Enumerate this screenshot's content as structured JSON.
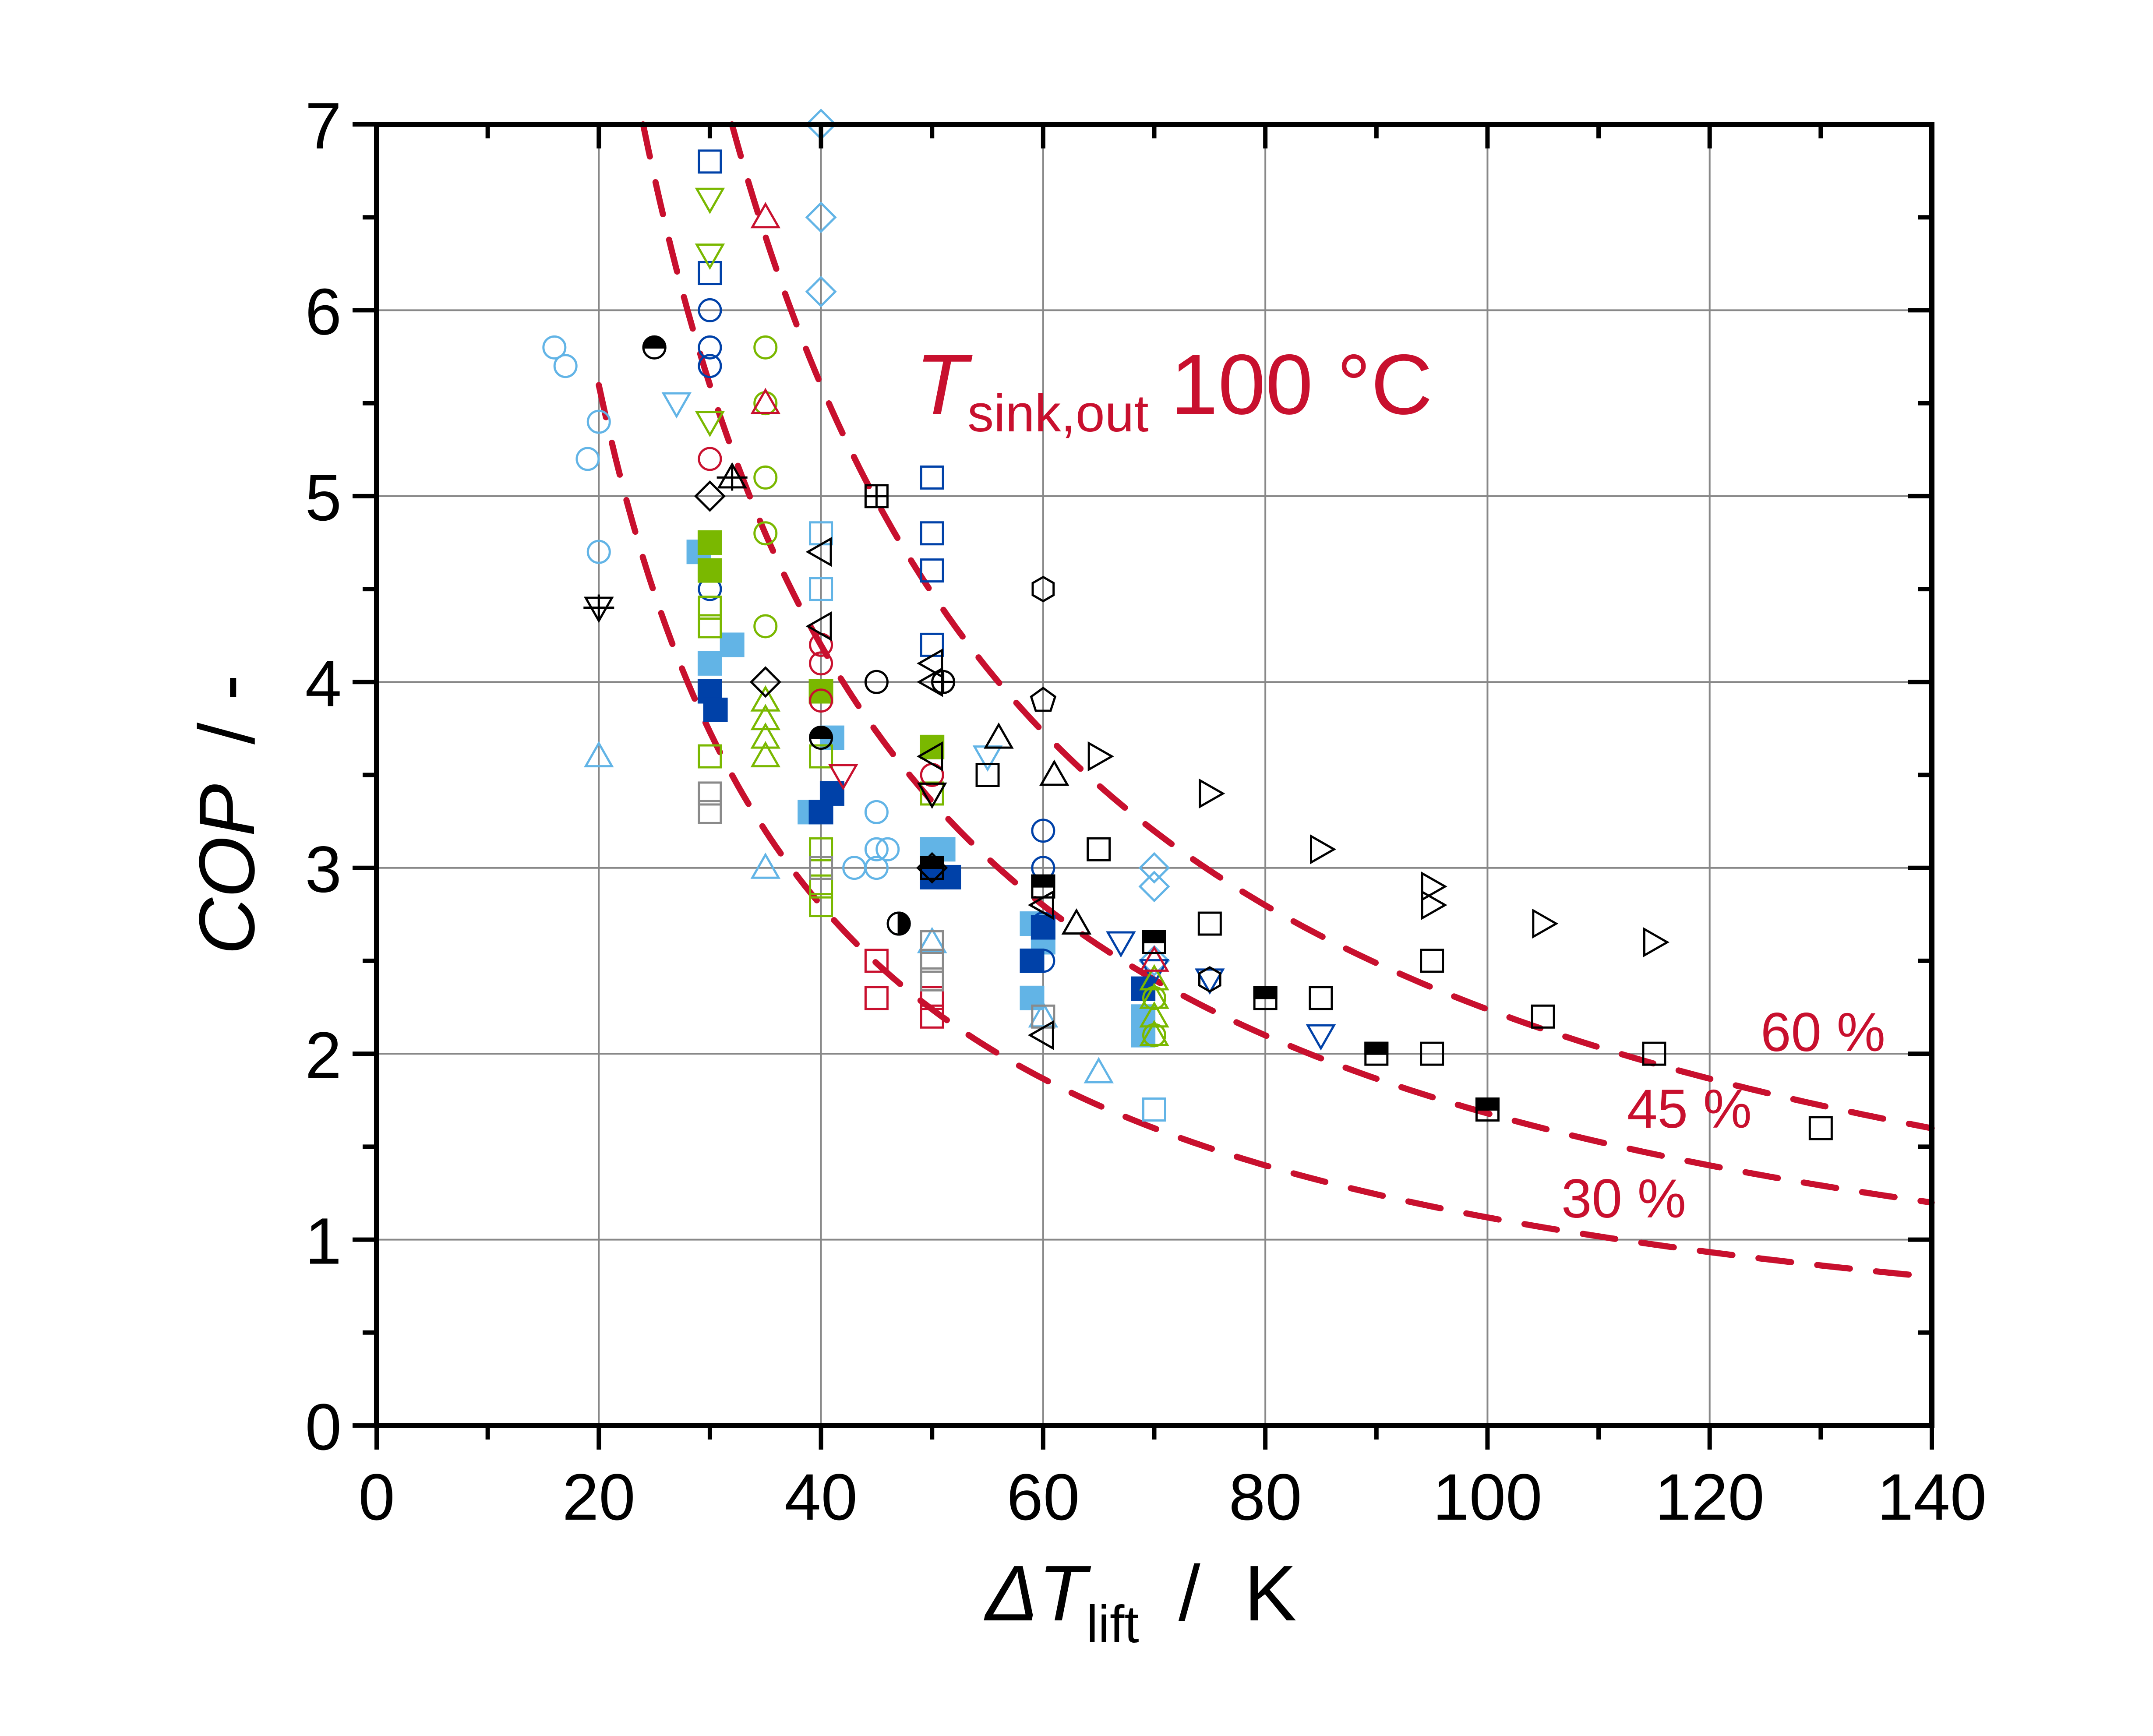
{
  "chart_data": {
    "type": "scatter",
    "xlabel": {
      "prefix": "ΔT",
      "subscript": "lift",
      "unit": "/  K"
    },
    "ylabel": {
      "main": "COP",
      "unit": "/  -"
    },
    "xlim": [
      0,
      140
    ],
    "ylim": [
      0,
      7
    ],
    "x_ticks": [
      "0",
      "20",
      "40",
      "60",
      "80",
      "100",
      "120",
      "140"
    ],
    "y_ticks": [
      "0",
      "1",
      "2",
      "3",
      "4",
      "5",
      "6",
      "7"
    ],
    "grid": true,
    "colors": {
      "black": "#000000",
      "light_blue": "#62b4e6",
      "dark_blue": "#0041a8",
      "green": "#7ab800",
      "red": "#c8102e",
      "gray": "#8a8a8a"
    },
    "annotation": {
      "T": "T",
      "sub": "sink,out",
      "value": "100 °C"
    },
    "reference_curves": {
      "sink_temperature_c": 100,
      "style": "dashed",
      "color": "#c8102e",
      "efficiencies": [
        {
          "eta": 0.6,
          "label": "60 %"
        },
        {
          "eta": 0.45,
          "label": "45 %"
        },
        {
          "eta": 0.3,
          "label": "30 %"
        }
      ]
    },
    "points": [
      {
        "x": 16,
        "y": 5.8,
        "m": "circle",
        "c": "light_blue"
      },
      {
        "x": 17,
        "y": 5.7,
        "m": "circle",
        "c": "light_blue"
      },
      {
        "x": 19,
        "y": 5.2,
        "m": "circle",
        "c": "light_blue"
      },
      {
        "x": 20,
        "y": 5.4,
        "m": "circle",
        "c": "light_blue"
      },
      {
        "x": 20,
        "y": 4.7,
        "m": "circle",
        "c": "light_blue"
      },
      {
        "x": 27,
        "y": 5.5,
        "m": "tri-down",
        "c": "light_blue"
      },
      {
        "x": 20,
        "y": 3.6,
        "m": "tri-up",
        "c": "light_blue"
      },
      {
        "x": 29,
        "y": 4.7,
        "m": "square-filled",
        "c": "light_blue"
      },
      {
        "x": 30,
        "y": 4.1,
        "m": "square-filled",
        "c": "light_blue"
      },
      {
        "x": 32,
        "y": 4.2,
        "m": "square-filled",
        "c": "light_blue"
      },
      {
        "x": 40,
        "y": 7.0,
        "m": "diamond",
        "c": "light_blue"
      },
      {
        "x": 40,
        "y": 6.5,
        "m": "diamond",
        "c": "light_blue"
      },
      {
        "x": 40,
        "y": 6.1,
        "m": "diamond",
        "c": "light_blue"
      },
      {
        "x": 40,
        "y": 4.8,
        "m": "square",
        "c": "light_blue"
      },
      {
        "x": 40,
        "y": 4.5,
        "m": "square",
        "c": "light_blue"
      },
      {
        "x": 35,
        "y": 3.0,
        "m": "tri-up",
        "c": "light_blue"
      },
      {
        "x": 45,
        "y": 3.3,
        "m": "circle",
        "c": "light_blue"
      },
      {
        "x": 43,
        "y": 3.0,
        "m": "circle",
        "c": "light_blue"
      },
      {
        "x": 45,
        "y": 3.0,
        "m": "circle",
        "c": "light_blue"
      },
      {
        "x": 45,
        "y": 3.1,
        "m": "circle",
        "c": "light_blue"
      },
      {
        "x": 46,
        "y": 3.1,
        "m": "circle",
        "c": "light_blue"
      },
      {
        "x": 47,
        "y": 2.7,
        "m": "circle",
        "c": "light_blue"
      },
      {
        "x": 41,
        "y": 3.7,
        "m": "square-filled",
        "c": "light_blue"
      },
      {
        "x": 39,
        "y": 3.3,
        "m": "square-filled",
        "c": "light_blue"
      },
      {
        "x": 50,
        "y": 3.1,
        "m": "square-filled",
        "c": "light_blue"
      },
      {
        "x": 51,
        "y": 3.1,
        "m": "square-filled",
        "c": "light_blue"
      },
      {
        "x": 59,
        "y": 2.7,
        "m": "square-filled",
        "c": "light_blue"
      },
      {
        "x": 59,
        "y": 2.3,
        "m": "square-filled",
        "c": "light_blue"
      },
      {
        "x": 60,
        "y": 2.6,
        "m": "square-filled",
        "c": "light_blue"
      },
      {
        "x": 69,
        "y": 2.2,
        "m": "square-filled",
        "c": "light_blue"
      },
      {
        "x": 69,
        "y": 2.1,
        "m": "square-filled",
        "c": "light_blue"
      },
      {
        "x": 55,
        "y": 3.6,
        "m": "tri-down",
        "c": "light_blue"
      },
      {
        "x": 50,
        "y": 2.6,
        "m": "tri-up",
        "c": "light_blue"
      },
      {
        "x": 60,
        "y": 2.2,
        "m": "tri-up",
        "c": "light_blue"
      },
      {
        "x": 65,
        "y": 1.9,
        "m": "tri-up",
        "c": "light_blue"
      },
      {
        "x": 70,
        "y": 3.0,
        "m": "diamond",
        "c": "light_blue"
      },
      {
        "x": 70,
        "y": 2.9,
        "m": "diamond",
        "c": "light_blue"
      },
      {
        "x": 70,
        "y": 2.5,
        "m": "diamond",
        "c": "light_blue"
      },
      {
        "x": 70,
        "y": 1.7,
        "m": "square",
        "c": "light_blue"
      },
      {
        "x": 30,
        "y": 6.8,
        "m": "square",
        "c": "dark_blue"
      },
      {
        "x": 30,
        "y": 6.2,
        "m": "square",
        "c": "dark_blue"
      },
      {
        "x": 50,
        "y": 5.1,
        "m": "square",
        "c": "dark_blue"
      },
      {
        "x": 50,
        "y": 4.8,
        "m": "square",
        "c": "dark_blue"
      },
      {
        "x": 50,
        "y": 4.6,
        "m": "square",
        "c": "dark_blue"
      },
      {
        "x": 50,
        "y": 4.2,
        "m": "square",
        "c": "dark_blue"
      },
      {
        "x": 30,
        "y": 6.0,
        "m": "circle",
        "c": "dark_blue"
      },
      {
        "x": 30,
        "y": 5.8,
        "m": "circle",
        "c": "dark_blue"
      },
      {
        "x": 30,
        "y": 5.7,
        "m": "circle",
        "c": "dark_blue"
      },
      {
        "x": 30,
        "y": 4.5,
        "m": "circle",
        "c": "dark_blue"
      },
      {
        "x": 60,
        "y": 3.2,
        "m": "circle",
        "c": "dark_blue"
      },
      {
        "x": 60,
        "y": 3.0,
        "m": "circle",
        "c": "dark_blue"
      },
      {
        "x": 60,
        "y": 2.7,
        "m": "circle",
        "c": "dark_blue"
      },
      {
        "x": 60,
        "y": 2.5,
        "m": "circle",
        "c": "dark_blue"
      },
      {
        "x": 30,
        "y": 3.95,
        "m": "square-filled",
        "c": "dark_blue"
      },
      {
        "x": 30.5,
        "y": 3.85,
        "m": "square-filled",
        "c": "dark_blue"
      },
      {
        "x": 41,
        "y": 3.4,
        "m": "square-filled",
        "c": "dark_blue"
      },
      {
        "x": 40,
        "y": 3.3,
        "m": "square-filled",
        "c": "dark_blue"
      },
      {
        "x": 50,
        "y": 2.95,
        "m": "square-filled",
        "c": "dark_blue"
      },
      {
        "x": 51.5,
        "y": 2.95,
        "m": "square-filled",
        "c": "dark_blue"
      },
      {
        "x": 60,
        "y": 2.68,
        "m": "square-filled",
        "c": "dark_blue"
      },
      {
        "x": 59,
        "y": 2.5,
        "m": "square-filled",
        "c": "dark_blue"
      },
      {
        "x": 69,
        "y": 2.35,
        "m": "square-filled",
        "c": "dark_blue"
      },
      {
        "x": 67,
        "y": 2.6,
        "m": "tri-down",
        "c": "dark_blue"
      },
      {
        "x": 70,
        "y": 2.45,
        "m": "tri-down",
        "c": "dark_blue"
      },
      {
        "x": 75,
        "y": 2.4,
        "m": "tri-down",
        "c": "dark_blue"
      },
      {
        "x": 85,
        "y": 2.1,
        "m": "tri-down",
        "c": "dark_blue"
      },
      {
        "x": 30,
        "y": 6.6,
        "m": "tri-down",
        "c": "green"
      },
      {
        "x": 30,
        "y": 6.3,
        "m": "tri-down",
        "c": "green"
      },
      {
        "x": 30,
        "y": 5.4,
        "m": "tri-down",
        "c": "green"
      },
      {
        "x": 35,
        "y": 5.8,
        "m": "circle",
        "c": "green"
      },
      {
        "x": 35,
        "y": 5.5,
        "m": "circle",
        "c": "green"
      },
      {
        "x": 35,
        "y": 5.1,
        "m": "circle",
        "c": "green"
      },
      {
        "x": 35,
        "y": 4.8,
        "m": "circle",
        "c": "green"
      },
      {
        "x": 35,
        "y": 4.3,
        "m": "circle",
        "c": "green"
      },
      {
        "x": 70,
        "y": 2.3,
        "m": "circle",
        "c": "green"
      },
      {
        "x": 70,
        "y": 2.1,
        "m": "circle",
        "c": "green"
      },
      {
        "x": 30,
        "y": 4.75,
        "m": "square-filled",
        "c": "green"
      },
      {
        "x": 30,
        "y": 4.6,
        "m": "square-filled",
        "c": "green"
      },
      {
        "x": 40,
        "y": 3.95,
        "m": "square-filled",
        "c": "green"
      },
      {
        "x": 50,
        "y": 3.65,
        "m": "square-filled",
        "c": "green"
      },
      {
        "x": 30,
        "y": 4.4,
        "m": "square",
        "c": "green"
      },
      {
        "x": 30,
        "y": 4.3,
        "m": "square",
        "c": "green"
      },
      {
        "x": 30,
        "y": 3.6,
        "m": "square",
        "c": "green"
      },
      {
        "x": 40,
        "y": 3.6,
        "m": "square",
        "c": "green"
      },
      {
        "x": 40,
        "y": 3.1,
        "m": "square",
        "c": "green"
      },
      {
        "x": 40,
        "y": 2.9,
        "m": "square",
        "c": "green"
      },
      {
        "x": 40,
        "y": 2.8,
        "m": "square",
        "c": "green"
      },
      {
        "x": 50,
        "y": 3.4,
        "m": "square",
        "c": "green"
      },
      {
        "x": 35,
        "y": 3.9,
        "m": "tri-up",
        "c": "green"
      },
      {
        "x": 35,
        "y": 3.8,
        "m": "tri-up",
        "c": "green"
      },
      {
        "x": 35,
        "y": 3.7,
        "m": "tri-up",
        "c": "green"
      },
      {
        "x": 35,
        "y": 3.6,
        "m": "tri-up",
        "c": "green"
      },
      {
        "x": 70,
        "y": 2.4,
        "m": "tri-up",
        "c": "green"
      },
      {
        "x": 70,
        "y": 2.3,
        "m": "tri-up",
        "c": "green"
      },
      {
        "x": 70,
        "y": 2.2,
        "m": "tri-up",
        "c": "green"
      },
      {
        "x": 70,
        "y": 2.1,
        "m": "tri-up",
        "c": "green"
      },
      {
        "x": 35,
        "y": 6.5,
        "m": "tri-up",
        "c": "red"
      },
      {
        "x": 35,
        "y": 5.5,
        "m": "tri-up",
        "c": "red"
      },
      {
        "x": 30,
        "y": 5.2,
        "m": "circle",
        "c": "red"
      },
      {
        "x": 40,
        "y": 4.2,
        "m": "circle",
        "c": "red"
      },
      {
        "x": 40,
        "y": 4.1,
        "m": "circle",
        "c": "red"
      },
      {
        "x": 40,
        "y": 3.9,
        "m": "circle",
        "c": "red"
      },
      {
        "x": 50,
        "y": 3.5,
        "m": "circle",
        "c": "red"
      },
      {
        "x": 42,
        "y": 3.5,
        "m": "tri-down",
        "c": "red"
      },
      {
        "x": 70,
        "y": 2.5,
        "m": "tri-up",
        "c": "red"
      },
      {
        "x": 45,
        "y": 2.5,
        "m": "square",
        "c": "red"
      },
      {
        "x": 45,
        "y": 2.3,
        "m": "square",
        "c": "red"
      },
      {
        "x": 50,
        "y": 2.3,
        "m": "square",
        "c": "red"
      },
      {
        "x": 50,
        "y": 2.2,
        "m": "square",
        "c": "red"
      },
      {
        "x": 30,
        "y": 3.4,
        "m": "square",
        "c": "gray"
      },
      {
        "x": 30,
        "y": 3.3,
        "m": "square",
        "c": "gray"
      },
      {
        "x": 40,
        "y": 3.0,
        "m": "square",
        "c": "gray"
      },
      {
        "x": 50,
        "y": 2.6,
        "m": "square",
        "c": "gray"
      },
      {
        "x": 50,
        "y": 2.5,
        "m": "square",
        "c": "gray"
      },
      {
        "x": 50,
        "y": 2.4,
        "m": "square",
        "c": "gray"
      },
      {
        "x": 60,
        "y": 2.2,
        "m": "square",
        "c": "gray"
      },
      {
        "x": 60,
        "y": 2.9,
        "m": "square",
        "c": "gray"
      },
      {
        "x": 25,
        "y": 5.8,
        "m": "circle-half-top",
        "c": "black"
      },
      {
        "x": 40,
        "y": 3.7,
        "m": "circle-half-top",
        "c": "black"
      },
      {
        "x": 47,
        "y": 2.7,
        "m": "circle-half-right",
        "c": "black"
      },
      {
        "x": 32,
        "y": 5.1,
        "m": "tri-up-cross",
        "c": "black"
      },
      {
        "x": 20,
        "y": 4.4,
        "m": "tri-down-cross",
        "c": "black"
      },
      {
        "x": 30,
        "y": 5.0,
        "m": "diamond",
        "c": "black"
      },
      {
        "x": 35,
        "y": 4.0,
        "m": "diamond",
        "c": "black"
      },
      {
        "x": 50,
        "y": 3.0,
        "m": "diamond",
        "c": "black"
      },
      {
        "x": 45,
        "y": 5.0,
        "m": "square-cross",
        "c": "black"
      },
      {
        "x": 40,
        "y": 4.7,
        "m": "tri-left",
        "c": "black"
      },
      {
        "x": 40,
        "y": 4.3,
        "m": "tri-left",
        "c": "black"
      },
      {
        "x": 50,
        "y": 4.1,
        "m": "tri-left",
        "c": "black"
      },
      {
        "x": 50,
        "y": 4.0,
        "m": "tri-left",
        "c": "black"
      },
      {
        "x": 50,
        "y": 3.6,
        "m": "tri-left",
        "c": "black"
      },
      {
        "x": 60,
        "y": 2.8,
        "m": "tri-left",
        "c": "black"
      },
      {
        "x": 60,
        "y": 2.1,
        "m": "tri-left",
        "c": "black"
      },
      {
        "x": 45,
        "y": 4.0,
        "m": "circle",
        "c": "black"
      },
      {
        "x": 51,
        "y": 4.0,
        "m": "circle-plus",
        "c": "black"
      },
      {
        "x": 50,
        "y": 3.4,
        "m": "tri-down",
        "c": "black"
      },
      {
        "x": 56,
        "y": 3.7,
        "m": "tri-up",
        "c": "black"
      },
      {
        "x": 61,
        "y": 3.5,
        "m": "tri-up",
        "c": "black"
      },
      {
        "x": 63,
        "y": 2.7,
        "m": "tri-up",
        "c": "black"
      },
      {
        "x": 55,
        "y": 3.5,
        "m": "square",
        "c": "black"
      },
      {
        "x": 65,
        "y": 3.1,
        "m": "square",
        "c": "black"
      },
      {
        "x": 75,
        "y": 2.7,
        "m": "square",
        "c": "black"
      },
      {
        "x": 85,
        "y": 2.3,
        "m": "square",
        "c": "black"
      },
      {
        "x": 95,
        "y": 2.5,
        "m": "square",
        "c": "black"
      },
      {
        "x": 95,
        "y": 2.0,
        "m": "square",
        "c": "black"
      },
      {
        "x": 105,
        "y": 2.2,
        "m": "square",
        "c": "black"
      },
      {
        "x": 115,
        "y": 2.0,
        "m": "square",
        "c": "black"
      },
      {
        "x": 130,
        "y": 1.6,
        "m": "square",
        "c": "black"
      },
      {
        "x": 60,
        "y": 4.5,
        "m": "hexagon",
        "c": "black"
      },
      {
        "x": 75,
        "y": 2.4,
        "m": "hexagon",
        "c": "black"
      },
      {
        "x": 60,
        "y": 3.9,
        "m": "pentagon",
        "c": "black"
      },
      {
        "x": 65,
        "y": 3.6,
        "m": "tri-right",
        "c": "black"
      },
      {
        "x": 75,
        "y": 3.4,
        "m": "tri-right",
        "c": "black"
      },
      {
        "x": 85,
        "y": 3.1,
        "m": "tri-right",
        "c": "black"
      },
      {
        "x": 95,
        "y": 2.9,
        "m": "tri-right",
        "c": "black"
      },
      {
        "x": 95,
        "y": 2.8,
        "m": "tri-right",
        "c": "black"
      },
      {
        "x": 105,
        "y": 2.7,
        "m": "tri-right",
        "c": "black"
      },
      {
        "x": 115,
        "y": 2.6,
        "m": "tri-right",
        "c": "black"
      },
      {
        "x": 50,
        "y": 3.0,
        "m": "square-half-top",
        "c": "black"
      },
      {
        "x": 60,
        "y": 2.9,
        "m": "square-half-top",
        "c": "black"
      },
      {
        "x": 70,
        "y": 2.6,
        "m": "square-half-top",
        "c": "black"
      },
      {
        "x": 80,
        "y": 2.3,
        "m": "square-half-top",
        "c": "black"
      },
      {
        "x": 90,
        "y": 2.0,
        "m": "square-half-top",
        "c": "black"
      },
      {
        "x": 100,
        "y": 1.7,
        "m": "square-half-top",
        "c": "black"
      }
    ]
  }
}
